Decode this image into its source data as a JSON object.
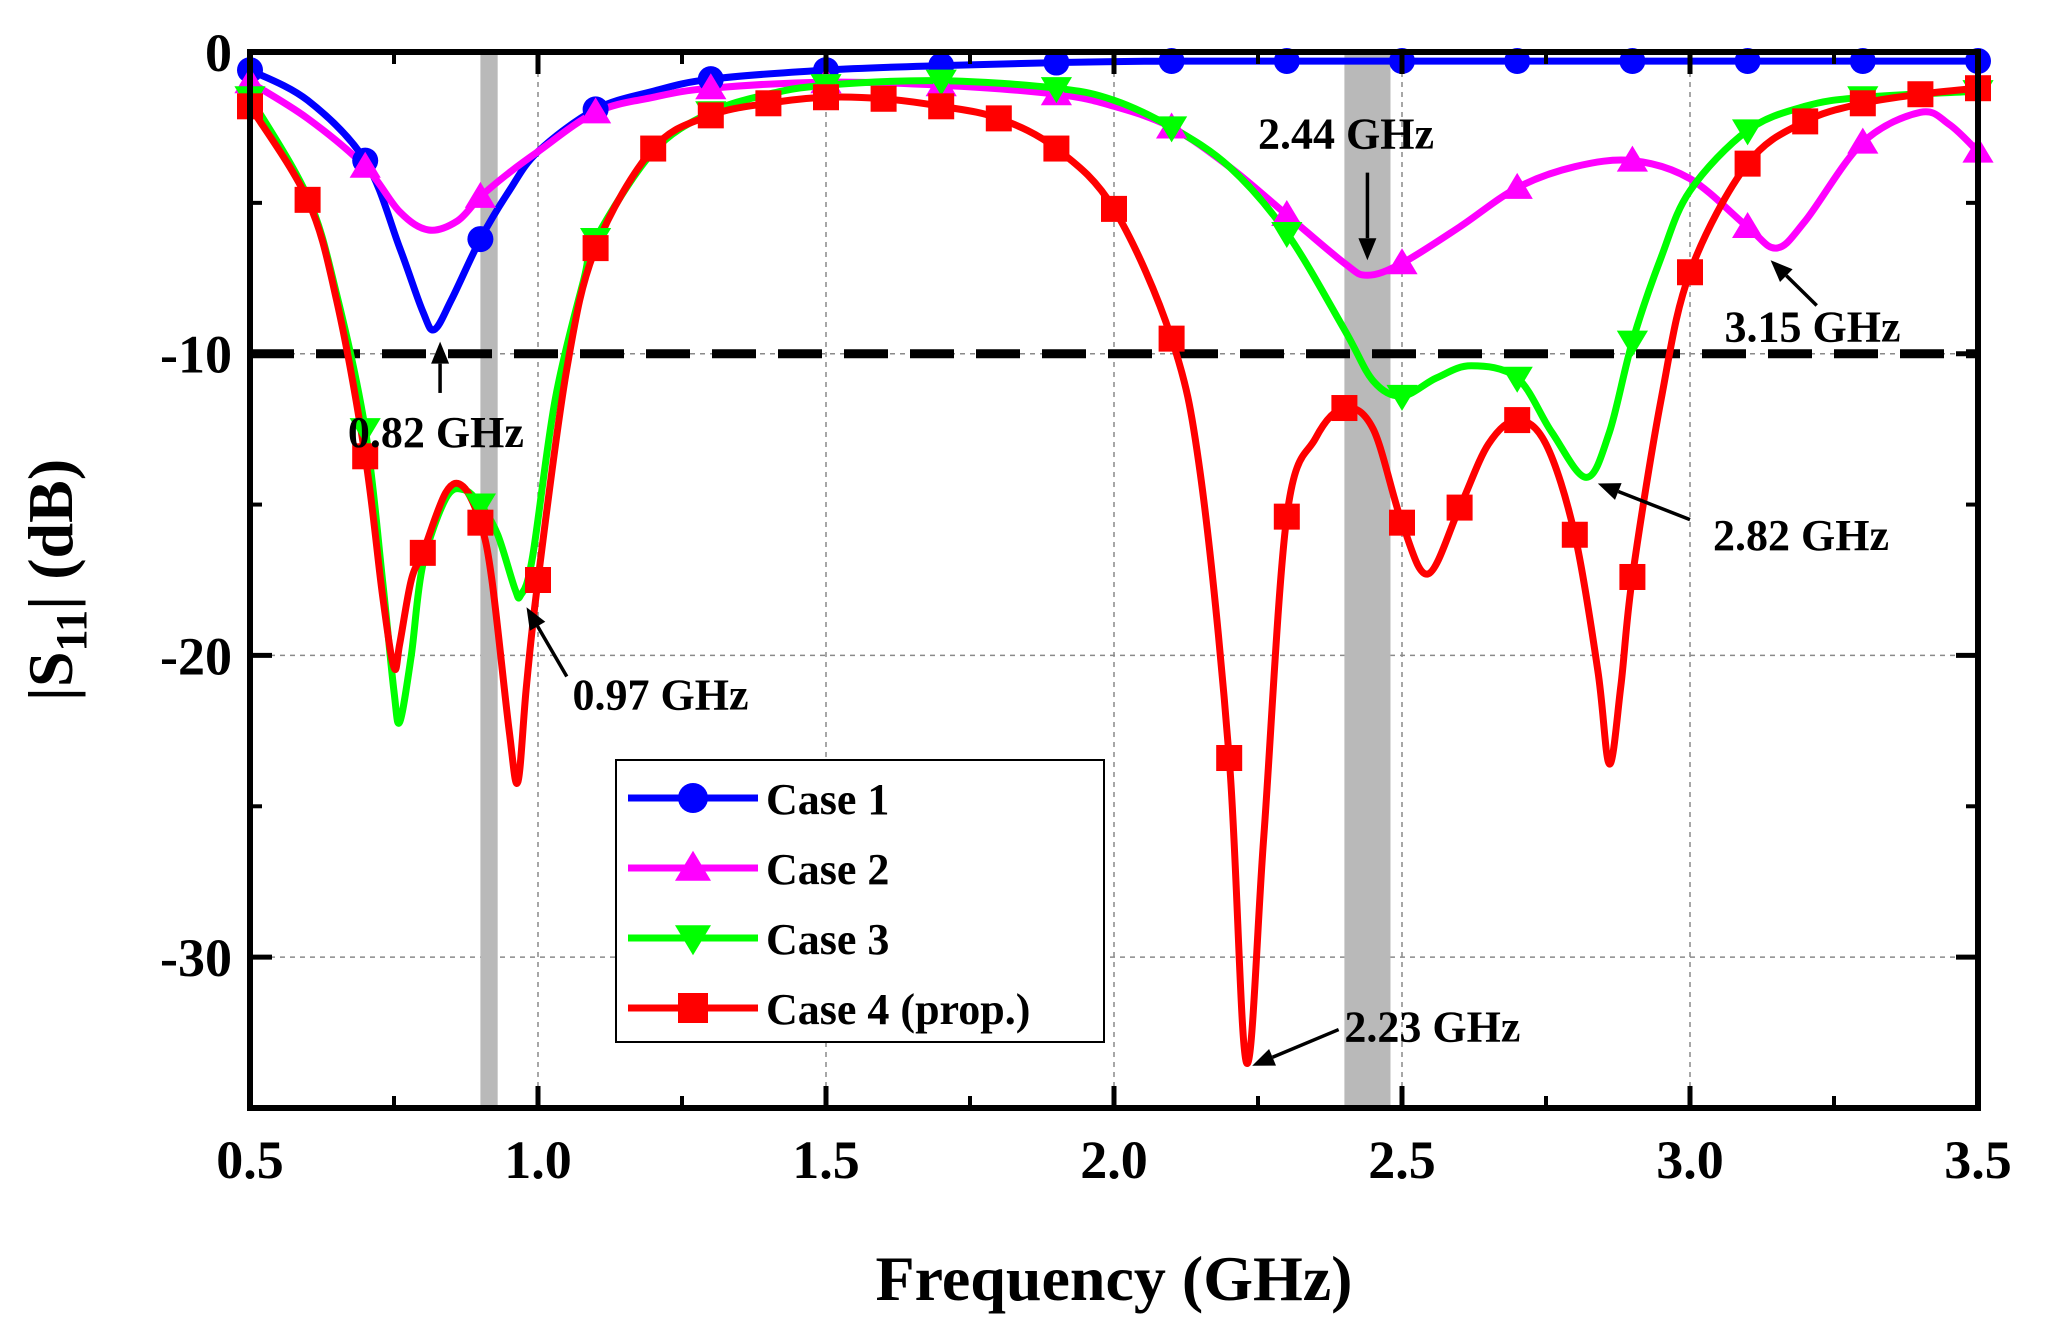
{
  "chart_data": {
    "type": "line",
    "xlabel": "Frequency (GHz)",
    "ylabel_main": "|S",
    "ylabel_sub": "11",
    "ylabel_tail": "| (dB)",
    "xlim": [
      0.5,
      3.5
    ],
    "ylim": [
      -35,
      0
    ],
    "xticks": [
      0.5,
      1.0,
      1.5,
      2.0,
      2.5,
      3.0,
      3.5
    ],
    "xtick_labels": [
      "0.5",
      "1.0",
      "1.5",
      "2.0",
      "2.5",
      "3.0",
      "3.5"
    ],
    "yticks": [
      0,
      -10,
      -20,
      -30
    ],
    "ytick_labels": [
      "0",
      "-10",
      "-20",
      "-30"
    ],
    "grid": true,
    "reference_line": {
      "y": -10,
      "style": "dashed",
      "color": "#000000"
    },
    "shaded_bands": [
      {
        "x0": 0.9,
        "x1": 0.93,
        "color": "#b9b9b9"
      },
      {
        "x0": 2.4,
        "x1": 2.48,
        "color": "#b9b9b9"
      }
    ],
    "legend_position": "bottom-center",
    "series": [
      {
        "name": "Case 1",
        "color": "#0000ff",
        "marker": "circle",
        "points": [
          [
            0.5,
            -0.6
          ],
          [
            0.6,
            -1.6
          ],
          [
            0.7,
            -3.6
          ],
          [
            0.76,
            -6.5
          ],
          [
            0.8,
            -8.6
          ],
          [
            0.82,
            -9.2
          ],
          [
            0.85,
            -8.2
          ],
          [
            0.9,
            -6.2
          ],
          [
            0.95,
            -4.6
          ],
          [
            1.0,
            -3.3
          ],
          [
            1.1,
            -1.9
          ],
          [
            1.2,
            -1.3
          ],
          [
            1.3,
            -0.9
          ],
          [
            1.5,
            -0.6
          ],
          [
            1.7,
            -0.45
          ],
          [
            1.9,
            -0.35
          ],
          [
            2.1,
            -0.3
          ],
          [
            2.5,
            -0.3
          ],
          [
            3.0,
            -0.3
          ],
          [
            3.5,
            -0.3
          ]
        ],
        "markers_x": [
          0.5,
          0.7,
          0.9,
          1.1,
          1.3,
          1.5,
          1.7,
          1.9,
          2.1,
          2.3,
          2.5,
          2.7,
          2.9,
          3.1,
          3.3,
          3.5
        ]
      },
      {
        "name": "Case 2",
        "color": "#ff00ff",
        "marker": "triangle-up",
        "points": [
          [
            0.5,
            -1.0
          ],
          [
            0.6,
            -2.2
          ],
          [
            0.7,
            -3.8
          ],
          [
            0.76,
            -5.3
          ],
          [
            0.81,
            -5.9
          ],
          [
            0.86,
            -5.6
          ],
          [
            0.9,
            -4.8
          ],
          [
            0.95,
            -4.0
          ],
          [
            1.0,
            -3.3
          ],
          [
            1.1,
            -2.0
          ],
          [
            1.2,
            -1.5
          ],
          [
            1.3,
            -1.2
          ],
          [
            1.5,
            -1.0
          ],
          [
            1.7,
            -1.1
          ],
          [
            1.9,
            -1.4
          ],
          [
            2.0,
            -1.8
          ],
          [
            2.1,
            -2.5
          ],
          [
            2.2,
            -3.8
          ],
          [
            2.3,
            -5.4
          ],
          [
            2.4,
            -7.0
          ],
          [
            2.44,
            -7.4
          ],
          [
            2.5,
            -7.0
          ],
          [
            2.6,
            -5.8
          ],
          [
            2.7,
            -4.5
          ],
          [
            2.8,
            -3.8
          ],
          [
            2.9,
            -3.6
          ],
          [
            3.0,
            -4.2
          ],
          [
            3.1,
            -5.8
          ],
          [
            3.15,
            -6.5
          ],
          [
            3.2,
            -5.6
          ],
          [
            3.3,
            -3.0
          ],
          [
            3.4,
            -2.0
          ],
          [
            3.45,
            -2.4
          ],
          [
            3.5,
            -3.3
          ]
        ],
        "markers_x": [
          0.5,
          0.7,
          0.9,
          1.1,
          1.3,
          1.5,
          1.7,
          1.9,
          2.1,
          2.3,
          2.5,
          2.7,
          2.9,
          3.1,
          3.3,
          3.5
        ]
      },
      {
        "name": "Case 3",
        "color": "#00ff00",
        "marker": "triangle-down",
        "points": [
          [
            0.5,
            -1.5
          ],
          [
            0.6,
            -4.8
          ],
          [
            0.65,
            -8.0
          ],
          [
            0.7,
            -12.5
          ],
          [
            0.73,
            -17.5
          ],
          [
            0.75,
            -21.2
          ],
          [
            0.76,
            -22.2
          ],
          [
            0.78,
            -20.0
          ],
          [
            0.8,
            -17.0
          ],
          [
            0.84,
            -14.8
          ],
          [
            0.87,
            -14.5
          ],
          [
            0.9,
            -15.0
          ],
          [
            0.93,
            -16.0
          ],
          [
            0.96,
            -17.8
          ],
          [
            0.97,
            -18.0
          ],
          [
            0.99,
            -16.8
          ],
          [
            1.03,
            -11.5
          ],
          [
            1.08,
            -7.5
          ],
          [
            1.1,
            -6.2
          ],
          [
            1.2,
            -3.3
          ],
          [
            1.3,
            -2.0
          ],
          [
            1.4,
            -1.4
          ],
          [
            1.5,
            -1.1
          ],
          [
            1.7,
            -0.95
          ],
          [
            1.9,
            -1.2
          ],
          [
            2.0,
            -1.6
          ],
          [
            2.1,
            -2.5
          ],
          [
            2.2,
            -3.8
          ],
          [
            2.3,
            -6.0
          ],
          [
            2.4,
            -9.2
          ],
          [
            2.45,
            -10.9
          ],
          [
            2.5,
            -11.4
          ],
          [
            2.56,
            -10.8
          ],
          [
            2.62,
            -10.4
          ],
          [
            2.7,
            -10.8
          ],
          [
            2.76,
            -12.6
          ],
          [
            2.82,
            -14.1
          ],
          [
            2.86,
            -12.6
          ],
          [
            2.9,
            -9.6
          ],
          [
            2.95,
            -6.8
          ],
          [
            3.0,
            -4.6
          ],
          [
            3.1,
            -2.6
          ],
          [
            3.2,
            -1.8
          ],
          [
            3.3,
            -1.5
          ],
          [
            3.5,
            -1.3
          ]
        ],
        "markers_x": [
          0.5,
          0.7,
          0.9,
          1.1,
          1.3,
          1.5,
          1.7,
          1.9,
          2.1,
          2.3,
          2.5,
          2.7,
          2.9,
          3.1,
          3.3,
          3.5
        ]
      },
      {
        "name": "Case 4 (prop.)",
        "color": "#ff0000",
        "marker": "square",
        "points": [
          [
            0.5,
            -1.8
          ],
          [
            0.6,
            -4.9
          ],
          [
            0.65,
            -8.2
          ],
          [
            0.7,
            -13.4
          ],
          [
            0.73,
            -18.0
          ],
          [
            0.75,
            -20.4
          ],
          [
            0.76,
            -19.6
          ],
          [
            0.78,
            -17.5
          ],
          [
            0.8,
            -16.6
          ],
          [
            0.84,
            -14.6
          ],
          [
            0.87,
            -14.4
          ],
          [
            0.9,
            -15.6
          ],
          [
            0.92,
            -17.5
          ],
          [
            0.95,
            -22.5
          ],
          [
            0.965,
            -24.2
          ],
          [
            0.98,
            -21.0
          ],
          [
            1.0,
            -17.5
          ],
          [
            1.05,
            -10.5
          ],
          [
            1.1,
            -6.5
          ],
          [
            1.2,
            -3.2
          ],
          [
            1.3,
            -2.1
          ],
          [
            1.4,
            -1.7
          ],
          [
            1.5,
            -1.5
          ],
          [
            1.6,
            -1.55
          ],
          [
            1.7,
            -1.8
          ],
          [
            1.8,
            -2.2
          ],
          [
            1.9,
            -3.2
          ],
          [
            2.0,
            -5.2
          ],
          [
            2.1,
            -9.5
          ],
          [
            2.15,
            -14.0
          ],
          [
            2.2,
            -23.4
          ],
          [
            2.23,
            -33.5
          ],
          [
            2.26,
            -26.0
          ],
          [
            2.3,
            -15.4
          ],
          [
            2.35,
            -12.8
          ],
          [
            2.4,
            -11.8
          ],
          [
            2.45,
            -12.5
          ],
          [
            2.5,
            -15.6
          ],
          [
            2.545,
            -17.3
          ],
          [
            2.6,
            -15.1
          ],
          [
            2.65,
            -13.0
          ],
          [
            2.7,
            -12.2
          ],
          [
            2.75,
            -13.0
          ],
          [
            2.8,
            -16.0
          ],
          [
            2.84,
            -20.5
          ],
          [
            2.86,
            -23.6
          ],
          [
            2.88,
            -21.0
          ],
          [
            2.9,
            -17.4
          ],
          [
            2.95,
            -11.5
          ],
          [
            3.0,
            -7.3
          ],
          [
            3.1,
            -3.7
          ],
          [
            3.2,
            -2.3
          ],
          [
            3.3,
            -1.7
          ],
          [
            3.4,
            -1.4
          ],
          [
            3.5,
            -1.2
          ]
        ],
        "markers_x": [
          0.5,
          0.6,
          0.7,
          0.8,
          0.9,
          1.0,
          1.1,
          1.2,
          1.3,
          1.4,
          1.5,
          1.6,
          1.7,
          1.8,
          1.9,
          2.0,
          2.1,
          2.2,
          2.3,
          2.4,
          2.5,
          2.6,
          2.7,
          2.8,
          2.9,
          3.0,
          3.1,
          3.2,
          3.3,
          3.4,
          3.5
        ]
      }
    ],
    "annotations": [
      {
        "text": "0.82 GHz",
        "text_x": 0.67,
        "text_y": -13.1,
        "arrow_from": [
          0.83,
          -11.3
        ],
        "arrow_to": [
          0.83,
          -9.6
        ]
      },
      {
        "text": "0.97 GHz",
        "text_x": 1.06,
        "text_y": -21.8,
        "arrow_from": [
          1.05,
          -20.7
        ],
        "arrow_to": [
          0.98,
          -18.4
        ]
      },
      {
        "text": "2.44 GHz",
        "text_x": 2.25,
        "text_y": -3.2,
        "arrow_from": [
          2.44,
          -4.0
        ],
        "arrow_to": [
          2.44,
          -6.9
        ]
      },
      {
        "text": "3.15 GHz",
        "text_x": 3.06,
        "text_y": -9.6,
        "arrow_from": [
          3.22,
          -8.4
        ],
        "arrow_to": [
          3.14,
          -6.9
        ]
      },
      {
        "text": "2.82 GHz",
        "text_x": 3.04,
        "text_y": -16.5,
        "arrow_from": [
          3.0,
          -15.5
        ],
        "arrow_to": [
          2.84,
          -14.3
        ]
      },
      {
        "text": "2.23 GHz",
        "text_x": 2.4,
        "text_y": -32.8,
        "arrow_from": [
          2.39,
          -32.4
        ],
        "arrow_to": [
          2.24,
          -33.6
        ]
      }
    ]
  }
}
